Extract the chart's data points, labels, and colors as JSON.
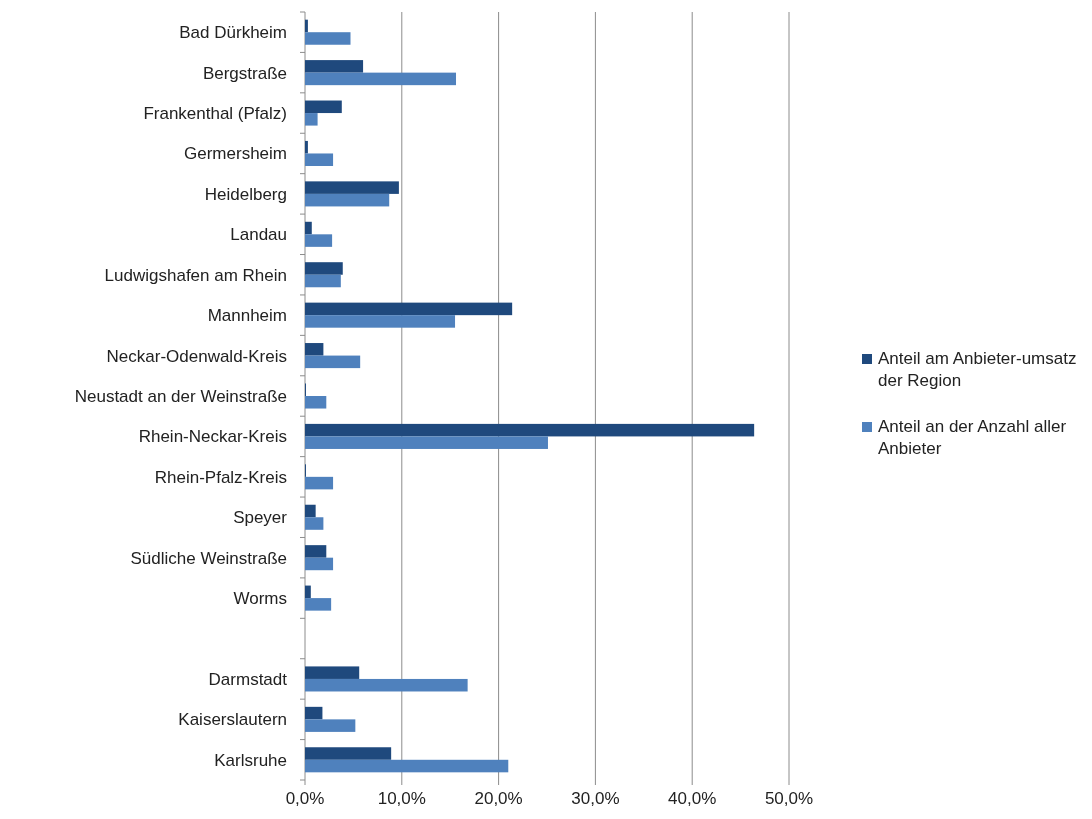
{
  "chart_data": {
    "type": "bar",
    "orientation": "horizontal",
    "categories": [
      "Bad Dürkheim",
      "Bergstraße",
      "Frankenthal (Pfalz)",
      "Germersheim",
      "Heidelberg",
      "Landau",
      "Ludwigshafen am Rhein",
      "Mannheim",
      "Neckar-Odenwald-Kreis",
      "Neustadt an der Weinstraße",
      "Rhein-Neckar-Kreis",
      "Rhein-Pfalz-Kreis",
      "Speyer",
      "Südliche Weinstraße",
      "Worms",
      null,
      "Darmstadt",
      "Kaiserslautern",
      "Karlsruhe"
    ],
    "series": [
      {
        "name": "Anteil am Anbieter-umsatz der Region",
        "color": "#1f497d",
        "values": [
          0.3,
          6.0,
          3.8,
          0.3,
          9.7,
          0.7,
          3.9,
          21.4,
          1.9,
          0.1,
          46.4,
          0.1,
          1.1,
          2.2,
          0.6,
          null,
          5.6,
          1.8,
          8.9
        ]
      },
      {
        "name": "Anteil an der Anzahl aller Anbieter",
        "color": "#4f81bd",
        "values": [
          4.7,
          15.6,
          1.3,
          2.9,
          8.7,
          2.8,
          3.7,
          15.5,
          5.7,
          2.2,
          25.1,
          2.9,
          1.9,
          2.9,
          2.7,
          null,
          16.8,
          5.2,
          21.0
        ]
      }
    ],
    "xlim": [
      0,
      50
    ],
    "xticks": [
      {
        "value": 0,
        "label": "0,0%"
      },
      {
        "value": 10,
        "label": "10,0%"
      },
      {
        "value": 20,
        "label": "20,0%"
      },
      {
        "value": 30,
        "label": "30,0%"
      },
      {
        "value": 40,
        "label": "40,0%"
      },
      {
        "value": 50,
        "label": "50,0%"
      }
    ],
    "grid": "x",
    "legend": "right"
  }
}
